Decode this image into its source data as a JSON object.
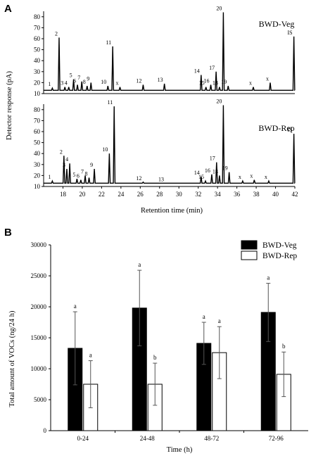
{
  "colors": {
    "veg_fill": "#000000",
    "rep_fill": "#ffffff",
    "line": "#000000"
  },
  "chart_data": [
    {
      "panel_label": "A",
      "type": "line",
      "xlabel": "Retention time (min)",
      "ylabel": "Detector response (pA)",
      "xlim": [
        16,
        42
      ],
      "x_ticks": [
        18,
        20,
        22,
        24,
        26,
        28,
        30,
        32,
        34,
        36,
        38,
        40,
        42
      ],
      "y_ticks": [
        10,
        20,
        30,
        40,
        50,
        60,
        70,
        80
      ],
      "ylim": [
        10,
        85
      ],
      "baseline": 13,
      "traces": [
        {
          "name": "BWD-Veg",
          "peaks": [
            {
              "label": "1",
              "x": 16.9,
              "y": 15
            },
            {
              "label": "2",
              "x": 17.6,
              "y": 61
            },
            {
              "label": "3",
              "x": 18.2,
              "y": 16
            },
            {
              "label": "4",
              "x": 18.6,
              "y": 16
            },
            {
              "label": "5",
              "x": 19.1,
              "y": 23
            },
            {
              "label": "6",
              "x": 19.5,
              "y": 18
            },
            {
              "label": "7",
              "x": 19.95,
              "y": 21
            },
            {
              "label": "8",
              "x": 20.5,
              "y": 17
            },
            {
              "label": "9",
              "x": 20.9,
              "y": 20
            },
            {
              "label": "10",
              "x": 22.65,
              "y": 17
            },
            {
              "label": "11",
              "x": 23.15,
              "y": 53
            },
            {
              "label": "x",
              "x": 23.9,
              "y": 16
            },
            {
              "label": "12",
              "x": 26.3,
              "y": 18
            },
            {
              "label": "13",
              "x": 28.5,
              "y": 19
            },
            {
              "label": "14",
              "x": 32.3,
              "y": 27
            },
            {
              "label": "15",
              "x": 32.8,
              "y": 16
            },
            {
              "label": "16",
              "x": 33.3,
              "y": 18
            },
            {
              "label": "17",
              "x": 33.85,
              "y": 30
            },
            {
              "label": "18",
              "x": 34.2,
              "y": 16
            },
            {
              "label": "20",
              "x": 34.6,
              "y": 84
            },
            {
              "label": "19",
              "x": 35.1,
              "y": 17
            },
            {
              "label": "x",
              "x": 37.7,
              "y": 16
            },
            {
              "label": "x",
              "x": 39.45,
              "y": 20
            },
            {
              "label": "IS",
              "x": 41.9,
              "y": 62
            }
          ]
        },
        {
          "name": "BWD-Rep",
          "peaks": [
            {
              "label": "1",
              "x": 16.9,
              "y": 15
            },
            {
              "label": "2",
              "x": 18.1,
              "y": 38
            },
            {
              "label": "3",
              "x": 18.4,
              "y": 26
            },
            {
              "label": "4",
              "x": 18.7,
              "y": 31
            },
            {
              "label": "5",
              "x": 19.45,
              "y": 17
            },
            {
              "label": "6",
              "x": 19.85,
              "y": 16
            },
            {
              "label": "7",
              "x": 20.3,
              "y": 20
            },
            {
              "label": "8",
              "x": 20.7,
              "y": 18
            },
            {
              "label": "9",
              "x": 21.25,
              "y": 26
            },
            {
              "label": "10",
              "x": 22.8,
              "y": 40
            },
            {
              "label": "11",
              "x": 23.3,
              "y": 83
            },
            {
              "label": "12",
              "x": 26.3,
              "y": 14
            },
            {
              "label": "13",
              "x": 28.6,
              "y": 13
            },
            {
              "label": "14",
              "x": 32.3,
              "y": 19
            },
            {
              "label": "15",
              "x": 32.75,
              "y": 15
            },
            {
              "label": "16",
              "x": 33.4,
              "y": 21
            },
            {
              "label": "17",
              "x": 33.9,
              "y": 32
            },
            {
              "label": "18",
              "x": 34.2,
              "y": 20
            },
            {
              "label": "20",
              "x": 34.6,
              "y": 84
            },
            {
              "label": "19",
              "x": 35.2,
              "y": 23
            },
            {
              "label": "x",
              "x": 36.6,
              "y": 15
            },
            {
              "label": "x",
              "x": 37.8,
              "y": 16
            },
            {
              "label": "x",
              "x": 39.3,
              "y": 15
            },
            {
              "label": "IS",
              "x": 41.9,
              "y": 58
            }
          ]
        }
      ]
    },
    {
      "panel_label": "B",
      "type": "bar",
      "ylabel": "Total amount of VOCs (ng/24 h)",
      "xlabel": "Time (h)",
      "ylim": [
        0,
        30000
      ],
      "y_ticks": [
        0,
        5000,
        10000,
        15000,
        20000,
        25000,
        30000
      ],
      "categories": [
        "0-24",
        "24-48",
        "48-72",
        "72-96"
      ],
      "legend_position": "top-right",
      "series": [
        {
          "name": "BWD-Veg",
          "values": [
            13300,
            19800,
            14100,
            19100
          ],
          "errors": [
            5900,
            6100,
            3400,
            4700
          ],
          "letters": [
            "a",
            "a",
            "a",
            "a"
          ]
        },
        {
          "name": "BWD-Rep",
          "values": [
            7500,
            7500,
            12600,
            9100
          ],
          "errors": [
            3800,
            3400,
            4200,
            3600
          ],
          "letters": [
            "a",
            "b",
            "a",
            "b"
          ]
        }
      ]
    }
  ]
}
